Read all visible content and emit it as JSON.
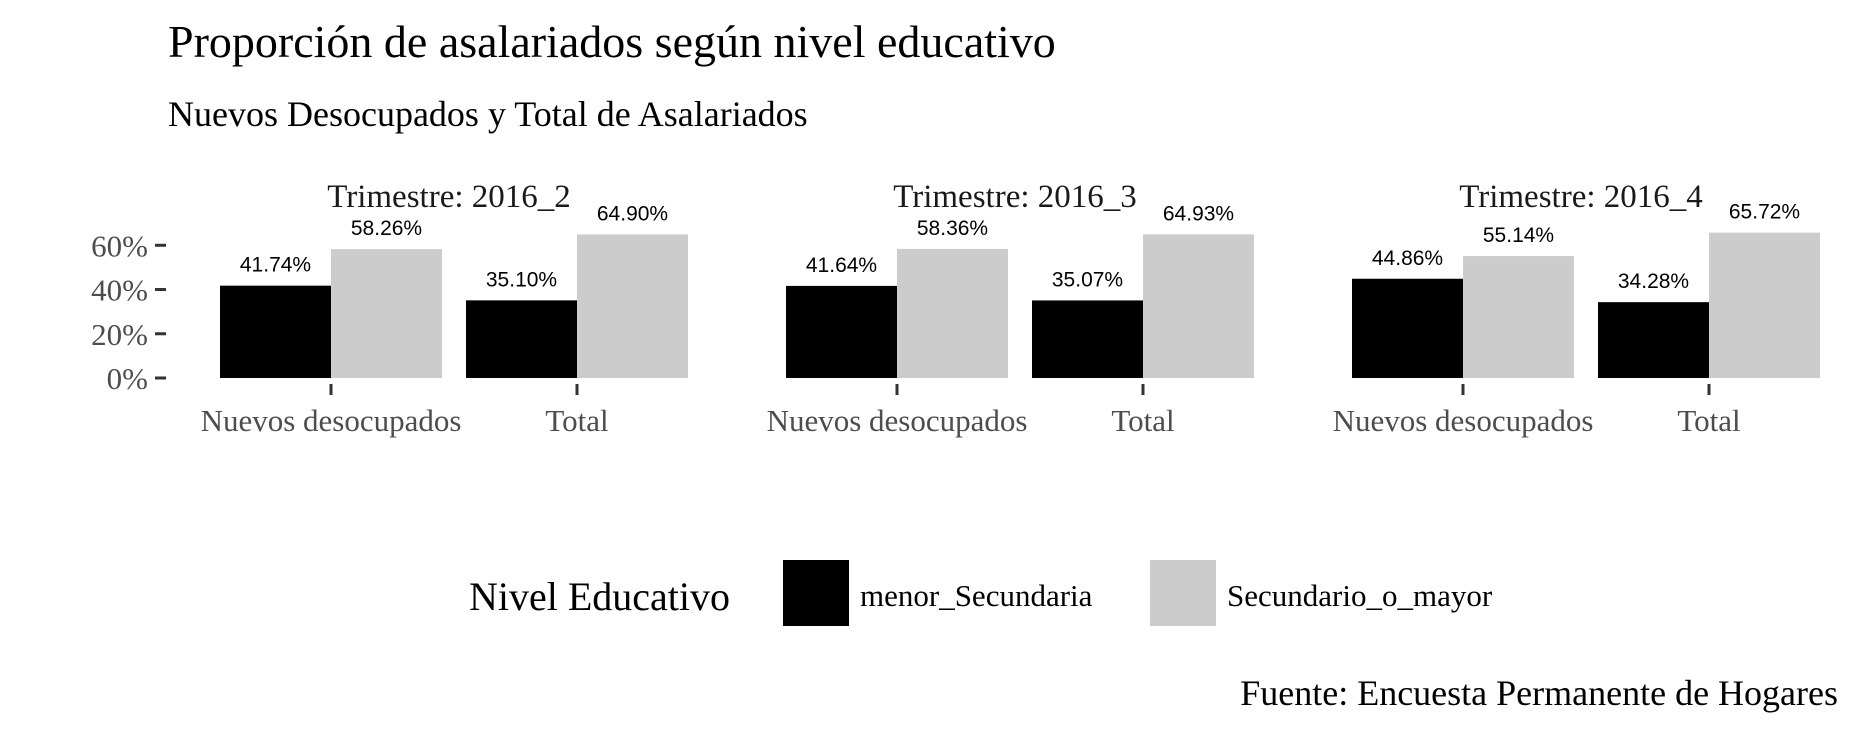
{
  "chart_data": {
    "type": "bar",
    "title": "Proporción de asalariados según nivel educativo",
    "subtitle": "Nuevos Desocupados y Total de Asalariados",
    "caption": "Fuente: Encuesta Permanente de Hogares",
    "y_ticks": [
      "0%",
      "20%",
      "40%",
      "60%"
    ],
    "ylim": [
      0,
      0.66
    ],
    "y_tick_values": [
      0,
      0.2,
      0.4,
      0.6
    ],
    "categories": [
      "Nuevos desocupados",
      "Total"
    ],
    "legend": {
      "title": "Nivel Educativo",
      "position": "bottom",
      "items": [
        {
          "name": "menor_Secundaria",
          "color": "#000000"
        },
        {
          "name": "Secundario_o_mayor",
          "color": "#cccccc"
        }
      ]
    },
    "panels": [
      {
        "strip": "Trimestre: 2016_2",
        "series": [
          {
            "name": "menor_Secundaria",
            "values": [
              0.4174,
              0.351
            ],
            "labels": [
              "41.74%",
              "35.10%"
            ]
          },
          {
            "name": "Secundario_o_mayor",
            "values": [
              0.5826,
              0.649
            ],
            "labels": [
              "58.26%",
              "64.90%"
            ]
          }
        ]
      },
      {
        "strip": "Trimestre: 2016_3",
        "series": [
          {
            "name": "menor_Secundaria",
            "values": [
              0.4164,
              0.3507
            ],
            "labels": [
              "41.64%",
              "35.07%"
            ]
          },
          {
            "name": "Secundario_o_mayor",
            "values": [
              0.5836,
              0.6493
            ],
            "labels": [
              "58.36%",
              "64.93%"
            ]
          }
        ]
      },
      {
        "strip": "Trimestre: 2016_4",
        "series": [
          {
            "name": "menor_Secundaria",
            "values": [
              0.4486,
              0.3428
            ],
            "labels": [
              "44.86%",
              "34.28%"
            ]
          },
          {
            "name": "Secundario_o_mayor",
            "values": [
              0.5514,
              0.6572
            ],
            "labels": [
              "55.14%",
              "65.72%"
            ]
          }
        ]
      }
    ]
  }
}
